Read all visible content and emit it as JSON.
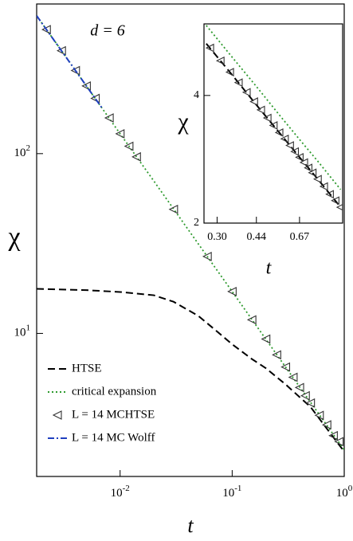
{
  "chart_data": [
    {
      "type": "line",
      "annotation": "d = 6",
      "x_label": "t",
      "y_label": "χ",
      "xscale": "log",
      "yscale": "log",
      "xlim": [
        0.0018,
        1
      ],
      "ylim": [
        1.6,
        680
      ],
      "xticks": [
        {
          "value": 0.01,
          "label": "10",
          "exponent": "-2"
        },
        {
          "value": 0.1,
          "label": "10",
          "exponent": "-1"
        },
        {
          "value": 1,
          "label": "10",
          "exponent": "0"
        }
      ],
      "yticks": [
        {
          "value": 10,
          "label": "10",
          "exponent": "1"
        },
        {
          "value": 100,
          "label": "10",
          "exponent": "2"
        }
      ],
      "legend": "lower-left",
      "series": [
        {
          "name": "HTSE",
          "color": "#000000",
          "style": "dashed",
          "x": [
            0.0018,
            0.005,
            0.01,
            0.02,
            0.03,
            0.05,
            0.07,
            0.1,
            0.15,
            0.2,
            0.3,
            0.5,
            0.7,
            1
          ],
          "values": [
            17.7,
            17.4,
            17,
            16.3,
            15,
            12.5,
            10.5,
            8.7,
            7.2,
            6.4,
            5.2,
            3.9,
            2.95,
            2.2
          ]
        },
        {
          "name": "critical expansion",
          "color": "#2e9a2e",
          "style": "dotted",
          "x": [
            0.0018,
            0.003,
            0.005,
            0.01,
            0.02,
            0.05,
            0.1,
            0.2,
            0.3,
            0.5,
            0.7,
            1
          ],
          "values": [
            585,
            374,
            238,
            129,
            70.4,
            31.4,
            17.1,
            9.27,
            6.49,
            4.14,
            3.08,
            2.25
          ]
        },
        {
          "name": "L = 14 MCHTSE",
          "color": "#333333",
          "style": "markers",
          "x": [
            0.0022,
            0.003,
            0.004,
            0.005,
            0.006,
            0.008,
            0.01,
            0.012,
            0.014,
            0.03,
            0.06,
            0.1,
            0.15,
            0.2,
            0.25,
            0.3,
            0.35,
            0.4,
            0.45,
            0.5,
            0.6,
            0.7,
            0.8,
            0.9
          ],
          "values": [
            490,
            374,
            290,
            238,
            203,
            158,
            129,
            110,
            96,
            49,
            26.8,
            17.1,
            11.9,
            9.3,
            7.6,
            6.5,
            5.7,
            5.0,
            4.5,
            4.1,
            3.5,
            3.1,
            2.7,
            2.5
          ]
        },
        {
          "name": "L = 14 MC Wolff",
          "color": "#1f3fbf",
          "style": "dashdot",
          "x": [
            0.0018,
            0.0025,
            0.0035,
            0.005,
            0.007
          ],
          "values": [
            585,
            438,
            326,
            238,
            177
          ]
        }
      ]
    },
    {
      "type": "line",
      "x_label": "t",
      "y_label": "χ",
      "xscale": "log",
      "yscale": "log",
      "xlim": [
        0.264,
        1.02
      ],
      "ylim": [
        2,
        5.9
      ],
      "xticks": [
        {
          "value": 0.3,
          "label": "0.30"
        },
        0.44,
        0.67
      ],
      "yticks": [
        2,
        4
      ],
      "series": [
        {
          "color": "#000000",
          "style": "dashed",
          "x": [
            0.27,
            0.35,
            0.44,
            0.55,
            0.67,
            0.8,
            1.0
          ],
          "values": [
            5.3,
            4.45,
            3.8,
            3.27,
            2.86,
            2.54,
            2.18
          ]
        },
        {
          "color": "#2e9a2e",
          "style": "dotted",
          "x": [
            0.27,
            0.35,
            0.44,
            0.55,
            0.67,
            0.8,
            1.0
          ],
          "values": [
            5.85,
            4.9,
            4.2,
            3.6,
            3.15,
            2.8,
            2.4
          ]
        },
        {
          "color": "#333333",
          "style": "markers",
          "x": [
            0.28,
            0.31,
            0.34,
            0.37,
            0.4,
            0.43,
            0.46,
            0.49,
            0.52,
            0.55,
            0.58,
            0.61,
            0.64,
            0.67,
            0.7,
            0.73,
            0.76,
            0.8,
            0.85,
            0.9,
            0.95,
            1.0
          ],
          "values": [
            5.18,
            4.83,
            4.54,
            4.29,
            4.07,
            3.87,
            3.7,
            3.54,
            3.4,
            3.27,
            3.16,
            3.05,
            2.95,
            2.86,
            2.78,
            2.7,
            2.63,
            2.54,
            2.44,
            2.34,
            2.26,
            2.18
          ]
        }
      ]
    }
  ]
}
